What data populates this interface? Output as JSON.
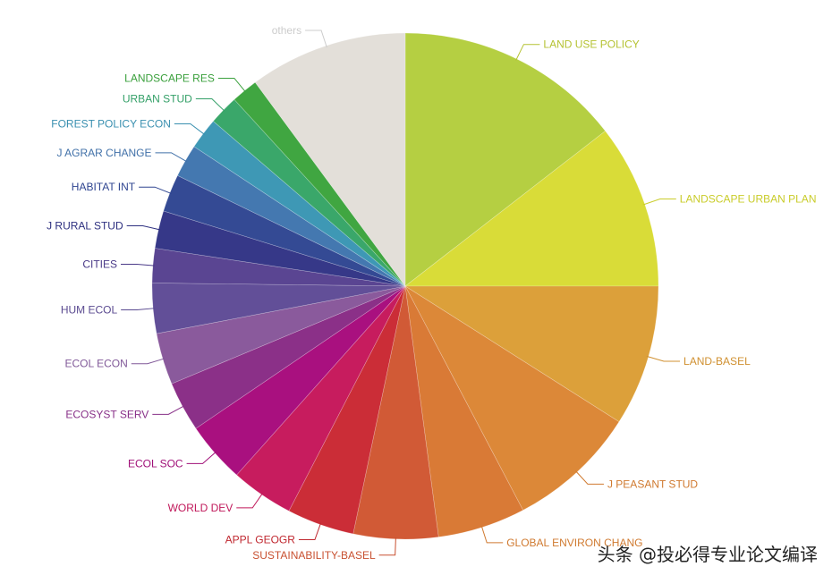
{
  "chart_data": {
    "type": "pie",
    "start": "top, clockwise",
    "categories": [
      "LAND USE POLICY",
      "LANDSCAPE URBAN PLAN",
      "LAND-BASEL",
      "J PEASANT STUD",
      "GLOBAL ENVIRON CHANG",
      "SUSTAINABILITY-BASEL",
      "APPL GEOGR",
      "WORLD DEV",
      "ECOL SOC",
      "ECOSYST SERV",
      "ECOL ECON",
      "HUM ECOL",
      "CITIES",
      "J RURAL STUD",
      "HABITAT INT",
      "J AGRAR CHANGE",
      "FOREST POLICY ECON",
      "URBAN STUD",
      "LANDSCAPE RES",
      "others"
    ],
    "values": [
      14.5,
      10.5,
      9.0,
      8.3,
      5.6,
      5.4,
      4.3,
      4.0,
      3.9,
      3.2,
      3.3,
      3.2,
      2.2,
      2.4,
      2.4,
      2.1,
      2.0,
      1.9,
      1.7,
      10.1
    ],
    "colors": [
      "#b5cf42",
      "#d9dc38",
      "#dca03a",
      "#dc8838",
      "#d97a36",
      "#d15a36",
      "#cb2d37",
      "#c71c5e",
      "#a9107f",
      "#8b3088",
      "#8a5a9c",
      "#624f98",
      "#5a4592",
      "#363888",
      "#344a94",
      "#4478b0",
      "#3e98b5",
      "#3aa76a",
      "#40a641",
      "#e3dfd9"
    ],
    "label_colors": [
      "#b5c232",
      "#c9cc2a",
      "#d09030",
      "#d07a30",
      "#d07a30",
      "#c85030",
      "#c02830",
      "#c0185a",
      "#a01078",
      "#883088",
      "#805898",
      "#5a4a90",
      "#4a3a88",
      "#2e3080",
      "#2e4490",
      "#4070a8",
      "#3a90b0",
      "#34a068",
      "#3aa03c",
      "#cccccc"
    ],
    "title": "",
    "legend": "none"
  },
  "watermark": "头条 @投必得专业论文编译"
}
